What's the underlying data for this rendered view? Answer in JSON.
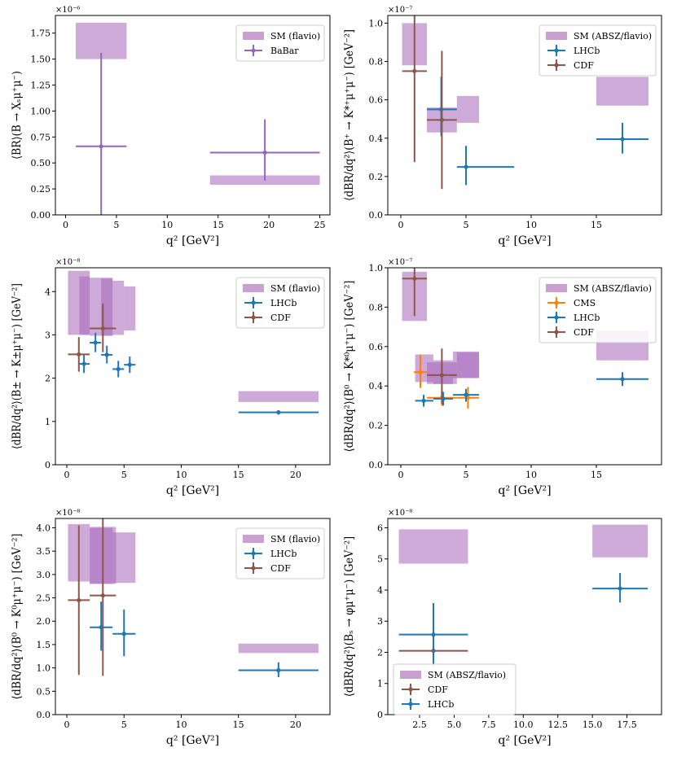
{
  "colors": {
    "sm": "#c9a0d0",
    "sm_dark": "#a86cbb",
    "babar": "#9467bd",
    "lhcb": "#1f77b4",
    "cdf": "#8c564b",
    "cms": "#ff7f0e"
  },
  "chart_data": [
    {
      "id": "p1",
      "type": "scatter",
      "xlim": [
        -1,
        26
      ],
      "ylim": [
        0,
        1.92e-06
      ],
      "xticks": [
        0,
        5,
        10,
        15,
        20,
        25
      ],
      "xtick_labels": [
        "0",
        "5",
        "10",
        "15",
        "20",
        "25"
      ],
      "yticks": [
        0,
        2.5e-07,
        5e-07,
        7.5e-07,
        1e-06,
        1.25e-06,
        1.5e-06,
        1.75e-06
      ],
      "ytick_labels": [
        "0.00",
        "0.25",
        "0.50",
        "0.75",
        "1.00",
        "1.25",
        "1.50",
        "1.75"
      ],
      "multiplier": "×10⁻⁶",
      "xlabel": "q² [GeV²]",
      "ylabel": "⟨BR⟩(B → Xₛμ⁺μ⁻)",
      "sm_boxes": [
        {
          "x0": 1,
          "x1": 6,
          "y0": 1.5e-06,
          "y1": 1.85e-06
        },
        {
          "x0": 14.2,
          "x1": 25,
          "y0": 2.9e-07,
          "y1": 3.8e-07
        }
      ],
      "series": [
        {
          "name": "BaBar",
          "color_key": "babar",
          "points": [
            {
              "x": 3.5,
              "xerr": [
                1,
                6
              ],
              "y": 6.6e-07,
              "yerr": [
                0,
                1.56e-06
              ]
            },
            {
              "x": 19.6,
              "xerr": [
                14.2,
                25
              ],
              "y": 6e-07,
              "yerr": [
                3.3e-07,
                9.2e-07
              ]
            }
          ]
        }
      ],
      "legend": {
        "position": "top-right",
        "sm_label": "SM (flavio)",
        "entries": [
          "BaBar"
        ]
      }
    },
    {
      "id": "p2",
      "type": "scatter",
      "xlim": [
        -1,
        20
      ],
      "ylim": [
        0,
        1.04e-07
      ],
      "xticks": [
        0,
        5,
        10,
        15
      ],
      "xtick_labels": [
        "0",
        "5",
        "10",
        "15"
      ],
      "yticks": [
        0,
        2e-08,
        4e-08,
        6e-08,
        8e-08,
        1e-07
      ],
      "ytick_labels": [
        "0.0",
        "0.2",
        "0.4",
        "0.6",
        "0.8",
        "1.0"
      ],
      "multiplier": "×10⁻⁷",
      "xlabel": "q² [GeV²]",
      "ylabel": "⟨dBR/dq²⟩(B⁺ → K*⁺μ⁺μ⁻) [GeV⁻²]",
      "sm_boxes": [
        {
          "x0": 0.1,
          "x1": 2,
          "y0": 7.8e-08,
          "y1": 1e-07
        },
        {
          "x0": 2,
          "x1": 4.3,
          "y0": 4.3e-08,
          "y1": 5.6e-08
        },
        {
          "x0": 4.3,
          "x1": 6,
          "y0": 4.8e-08,
          "y1": 6.2e-08
        },
        {
          "x0": 15,
          "x1": 19,
          "y0": 5.7e-08,
          "y1": 7.2e-08
        }
      ],
      "series": [
        {
          "name": "LHCb",
          "color_key": "lhcb",
          "points": [
            {
              "x": 3.1,
              "xerr": [
                2,
                4.3
              ],
              "y": 5.5e-08,
              "yerr": [
                4.1e-08,
                7.2e-08
              ]
            },
            {
              "x": 5,
              "xerr": [
                4.3,
                8.7
              ],
              "y": 2.5e-08,
              "yerr": [
                1.55e-08,
                3.6e-08
              ]
            },
            {
              "x": 17,
              "xerr": [
                15,
                19
              ],
              "y": 3.95e-08,
              "yerr": [
                3.2e-08,
                4.8e-08
              ]
            }
          ]
        },
        {
          "name": "CDF",
          "color_key": "cdf",
          "points": [
            {
              "x": 1.05,
              "xerr": [
                0.1,
                2
              ],
              "y": 7.5e-08,
              "yerr": [
                2.75e-08,
                1.04e-07
              ]
            },
            {
              "x": 3.15,
              "xerr": [
                2,
                4.3
              ],
              "y": 4.95e-08,
              "yerr": [
                1.35e-08,
                8.55e-08
              ]
            }
          ]
        }
      ],
      "legend": {
        "position": "top-right",
        "sm_label": "SM (ABSZ/flavio)",
        "entries": [
          "LHCb",
          "CDF"
        ]
      }
    },
    {
      "id": "p3",
      "type": "scatter",
      "xlim": [
        -1,
        23
      ],
      "ylim": [
        0,
        4.55e-08
      ],
      "xticks": [
        0,
        5,
        10,
        15,
        20
      ],
      "xtick_labels": [
        "0",
        "5",
        "10",
        "15",
        "20"
      ],
      "yticks": [
        0,
        1e-08,
        2e-08,
        3e-08,
        4e-08
      ],
      "ytick_labels": [
        "0",
        "1",
        "2",
        "3",
        "4"
      ],
      "multiplier": "×10⁻⁸",
      "xlabel": "q² [GeV²]",
      "ylabel": "⟨dBR/dq²⟩(B± → K±μ⁺μ⁻) [GeV⁻²]",
      "sm_boxes": [
        {
          "x0": 0.1,
          "x1": 2,
          "y0": 3e-08,
          "y1": 4.48e-08
        },
        {
          "x0": 1.1,
          "x1": 2,
          "y0": 3e-08,
          "y1": 4.35e-08
        },
        {
          "x0": 2,
          "x1": 4,
          "y0": 2.98e-08,
          "y1": 4.32e-08
        },
        {
          "x0": 3,
          "x1": 4,
          "y0": 2.98e-08,
          "y1": 4.3e-08
        },
        {
          "x0": 4,
          "x1": 5,
          "y0": 3e-08,
          "y1": 4.25e-08
        },
        {
          "x0": 5,
          "x1": 6,
          "y0": 3.1e-08,
          "y1": 4.12e-08
        },
        {
          "x0": 15,
          "x1": 22,
          "y0": 1.45e-08,
          "y1": 1.7e-08
        }
      ],
      "series": [
        {
          "name": "LHCb",
          "color_key": "lhcb",
          "points": [
            {
              "x": 1.5,
              "xerr": [
                1.1,
                2
              ],
              "y": 2.33e-08,
              "yerr": [
                2.12e-08,
                2.55e-08
              ]
            },
            {
              "x": 2.5,
              "xerr": [
                2,
                3
              ],
              "y": 2.82e-08,
              "yerr": [
                2.6e-08,
                3.05e-08
              ]
            },
            {
              "x": 3.5,
              "xerr": [
                3,
                4
              ],
              "y": 2.54e-08,
              "yerr": [
                2.34e-08,
                2.75e-08
              ]
            },
            {
              "x": 4.5,
              "xerr": [
                4,
                5
              ],
              "y": 2.21e-08,
              "yerr": [
                2.02e-08,
                2.4e-08
              ]
            },
            {
              "x": 5.5,
              "xerr": [
                5,
                6
              ],
              "y": 2.31e-08,
              "yerr": [
                2.12e-08,
                2.5e-08
              ]
            },
            {
              "x": 18.5,
              "xerr": [
                15,
                22
              ],
              "y": 1.21e-08,
              "yerr": [
                1.16e-08,
                1.26e-08
              ]
            }
          ]
        },
        {
          "name": "CDF",
          "color_key": "cdf",
          "points": [
            {
              "x": 1.05,
              "xerr": [
                0.1,
                2
              ],
              "y": 2.55e-08,
              "yerr": [
                2.15e-08,
                2.95e-08
              ]
            },
            {
              "x": 3.15,
              "xerr": [
                2,
                4.3
              ],
              "y": 3.15e-08,
              "yerr": [
                2.6e-08,
                3.72e-08
              ]
            }
          ]
        }
      ],
      "legend": {
        "position": "top-right",
        "sm_label": "SM (flavio)",
        "entries": [
          "LHCb",
          "CDF"
        ]
      }
    },
    {
      "id": "p4",
      "type": "scatter",
      "xlim": [
        -1,
        20
      ],
      "ylim": [
        0,
        1e-07
      ],
      "xticks": [
        0,
        5,
        10,
        15
      ],
      "xtick_labels": [
        "0",
        "5",
        "10",
        "15"
      ],
      "yticks": [
        0,
        2e-08,
        4e-08,
        6e-08,
        8e-08,
        1e-07
      ],
      "ytick_labels": [
        "0.0",
        "0.2",
        "0.4",
        "0.6",
        "0.8",
        "1.0"
      ],
      "multiplier": "×10⁻⁷",
      "xlabel": "q² [GeV²]",
      "ylabel": "⟨dBR/dq²⟩(B⁰ → K*⁰μ⁺μ⁻) [GeV⁻²]",
      "sm_boxes": [
        {
          "x0": 0.1,
          "x1": 2,
          "y0": 7.3e-08,
          "y1": 9.8e-08
        },
        {
          "x0": 1.1,
          "x1": 2.5,
          "y0": 4.2e-08,
          "y1": 5.6e-08
        },
        {
          "x0": 2,
          "x1": 4.3,
          "y0": 4.1e-08,
          "y1": 5.2e-08
        },
        {
          "x0": 2.5,
          "x1": 4,
          "y0": 4.1e-08,
          "y1": 5.3e-08
        },
        {
          "x0": 4,
          "x1": 6,
          "y0": 4.4e-08,
          "y1": 5.75e-08
        },
        {
          "x0": 4.3,
          "x1": 6,
          "y0": 4.4e-08,
          "y1": 5.7e-08
        },
        {
          "x0": 15,
          "x1": 19,
          "y0": 5.3e-08,
          "y1": 6.8e-08
        }
      ],
      "series": [
        {
          "name": "CMS",
          "color_key": "cms",
          "points": [
            {
              "x": 1.5,
              "xerr": [
                1,
                2
              ],
              "y": 4.7e-08,
              "yerr": [
                3.9e-08,
                5.6e-08
              ]
            },
            {
              "x": 3.15,
              "xerr": [
                2,
                4.3
              ],
              "y": 3.4e-08,
              "yerr": [
                3e-08,
                3.8e-08
              ]
            },
            {
              "x": 5.15,
              "xerr": [
                4.3,
                6
              ],
              "y": 3.4e-08,
              "yerr": [
                2.85e-08,
                3.95e-08
              ]
            }
          ]
        },
        {
          "name": "LHCb",
          "color_key": "lhcb",
          "points": [
            {
              "x": 1.75,
              "xerr": [
                1.1,
                2.5
              ],
              "y": 3.25e-08,
              "yerr": [
                2.95e-08,
                3.55e-08
              ]
            },
            {
              "x": 3.25,
              "xerr": [
                2.5,
                4
              ],
              "y": 3.35e-08,
              "yerr": [
                3e-08,
                3.7e-08
              ]
            },
            {
              "x": 5,
              "xerr": [
                4,
                6
              ],
              "y": 3.55e-08,
              "yerr": [
                3.2e-08,
                3.85e-08
              ]
            },
            {
              "x": 17,
              "xerr": [
                15,
                19
              ],
              "y": 4.35e-08,
              "yerr": [
                4e-08,
                4.7e-08
              ]
            }
          ]
        },
        {
          "name": "CDF",
          "color_key": "cdf",
          "points": [
            {
              "x": 1.05,
              "xerr": [
                0.1,
                2
              ],
              "y": 9.45e-08,
              "yerr": [
                7.55e-08,
                1.01e-07
              ]
            },
            {
              "x": 3.15,
              "xerr": [
                2,
                4.3
              ],
              "y": 4.55e-08,
              "yerr": [
                3.1e-08,
                5.9e-08
              ]
            }
          ]
        }
      ],
      "legend": {
        "position": "top-right",
        "sm_label": "SM (ABSZ/flavio)",
        "entries": [
          "CMS",
          "LHCb",
          "CDF"
        ]
      }
    },
    {
      "id": "p5",
      "type": "scatter",
      "xlim": [
        -1,
        23
      ],
      "ylim": [
        0,
        4.2e-08
      ],
      "xticks": [
        0,
        5,
        10,
        15,
        20
      ],
      "xtick_labels": [
        "0",
        "5",
        "10",
        "15",
        "20"
      ],
      "yticks": [
        0,
        5e-09,
        1e-08,
        1.5e-08,
        2e-08,
        2.5e-08,
        3e-08,
        3.5e-08,
        4e-08
      ],
      "ytick_labels": [
        "0.0",
        "0.5",
        "1.0",
        "1.5",
        "2.0",
        "2.5",
        "3.0",
        "3.5",
        "4.0"
      ],
      "multiplier": "×10⁻⁸",
      "xlabel": "q² [GeV²]",
      "ylabel": "⟨dBR/dq²⟩(B⁰ → K⁰μ⁺μ⁻) [GeV⁻²]",
      "sm_boxes": [
        {
          "x0": 0.1,
          "x1": 2,
          "y0": 2.85e-08,
          "y1": 4.08e-08
        },
        {
          "x0": 2,
          "x1": 4.3,
          "y0": 2.8e-08,
          "y1": 4.02e-08
        },
        {
          "x0": 2,
          "x1": 4,
          "y0": 2.8e-08,
          "y1": 4e-08
        },
        {
          "x0": 4,
          "x1": 6,
          "y0": 2.82e-08,
          "y1": 3.9e-08
        },
        {
          "x0": 15,
          "x1": 22,
          "y0": 1.32e-08,
          "y1": 1.52e-08
        }
      ],
      "series": [
        {
          "name": "LHCb",
          "color_key": "lhcb",
          "points": [
            {
              "x": 3,
              "xerr": [
                2,
                4
              ],
              "y": 1.87e-08,
              "yerr": [
                1.37e-08,
                2.42e-08
              ]
            },
            {
              "x": 5,
              "xerr": [
                4,
                6
              ],
              "y": 1.73e-08,
              "yerr": [
                1.25e-08,
                2.25e-08
              ]
            },
            {
              "x": 18.5,
              "xerr": [
                15,
                22
              ],
              "y": 9.5e-09,
              "yerr": [
                8e-09,
                1.12e-08
              ]
            }
          ]
        },
        {
          "name": "CDF",
          "color_key": "cdf",
          "points": [
            {
              "x": 1.05,
              "xerr": [
                0.1,
                2
              ],
              "y": 2.45e-08,
              "yerr": [
                8.5e-09,
                4.05e-08
              ]
            },
            {
              "x": 3.15,
              "xerr": [
                2,
                4.3
              ],
              "y": 2.55e-08,
              "yerr": [
                8.3e-09,
                4.2e-08
              ]
            }
          ]
        }
      ],
      "legend": {
        "position": "top-right",
        "sm_label": "SM (flavio)",
        "entries": [
          "LHCb",
          "CDF"
        ]
      }
    },
    {
      "id": "p6",
      "type": "scatter",
      "xlim": [
        0.2,
        20
      ],
      "ylim": [
        0,
        6.3e-08
      ],
      "xticks": [
        2.5,
        5,
        7.5,
        10,
        12.5,
        15,
        17.5
      ],
      "xtick_labels": [
        "2.5",
        "5.0",
        "7.5",
        "10.0",
        "12.5",
        "15.0",
        "17.5"
      ],
      "yticks": [
        0,
        1e-08,
        2e-08,
        3e-08,
        4e-08,
        5e-08,
        6e-08
      ],
      "ytick_labels": [
        "0",
        "1",
        "2",
        "3",
        "4",
        "5",
        "6"
      ],
      "multiplier": "×10⁻⁸",
      "xlabel": "q² [GeV²]",
      "ylabel": "⟨dBR/dq²⟩(Bₛ → φμ⁺μ⁻) [GeV⁻²]",
      "sm_boxes": [
        {
          "x0": 1,
          "x1": 6,
          "y0": 4.85e-08,
          "y1": 5.95e-08
        },
        {
          "x0": 15,
          "x1": 19,
          "y0": 5.05e-08,
          "y1": 6.1e-08
        }
      ],
      "series": [
        {
          "name": "CDF",
          "color_key": "cdf",
          "points": [
            {
              "x": 3.5,
              "xerr": [
                1,
                6
              ],
              "y": 2.05e-08,
              "yerr": [
                1.55e-08,
                2.55e-08
              ]
            }
          ]
        },
        {
          "name": "LHCb",
          "color_key": "lhcb",
          "points": [
            {
              "x": 3.5,
              "xerr": [
                1,
                6
              ],
              "y": 2.57e-08,
              "yerr": [
                1.55e-08,
                3.58e-08
              ]
            },
            {
              "x": 17,
              "xerr": [
                15,
                19
              ],
              "y": 4.05e-08,
              "yerr": [
                3.6e-08,
                4.55e-08
              ]
            }
          ]
        }
      ],
      "legend": {
        "position": "bottom-left",
        "sm_label": "SM (ABSZ/flavio)",
        "entries": [
          "CDF",
          "LHCb"
        ]
      }
    }
  ]
}
